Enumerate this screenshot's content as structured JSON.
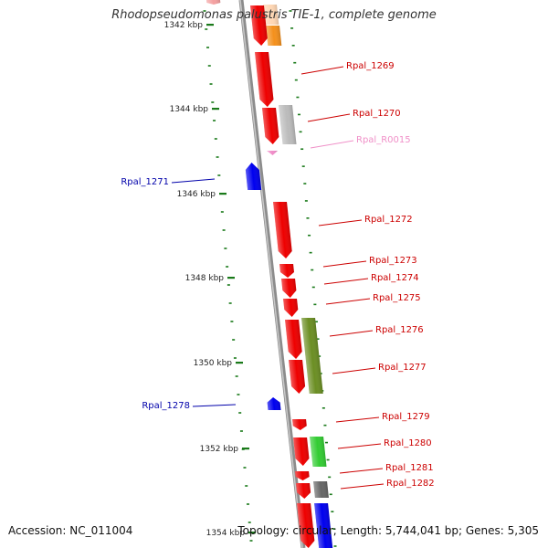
{
  "title": "Rhodopseudomonas palustris TIE-1, complete genome",
  "footer": {
    "accession": "Accession: NC_011004",
    "summary": "Topology: circular; Length: 5,744,041 bp; Genes: 5,305"
  },
  "scale_ticks": [
    {
      "label": "1342 kbp",
      "kbp": 1342
    },
    {
      "label": "1344 kbp",
      "kbp": 1344
    },
    {
      "label": "1346 kbp",
      "kbp": 1346
    },
    {
      "label": "1348 kbp",
      "kbp": 1348
    },
    {
      "label": "1350 kbp",
      "kbp": 1350
    },
    {
      "label": "1352 kbp",
      "kbp": 1352
    },
    {
      "label": "1354 kbp",
      "kbp": 1354
    }
  ],
  "colors": {
    "backbone": "#8c8c8c",
    "tick": "#1a7a1a",
    "forward_gene": "#ee0000",
    "reverse_gene": "#0000ee",
    "rna": "#f08cc8"
  },
  "gene_labels": [
    {
      "name": "Rpal_1269",
      "side": "right",
      "color": "#cc0000"
    },
    {
      "name": "Rpal_1270",
      "side": "right",
      "color": "#cc0000"
    },
    {
      "name": "Rpal_R0015",
      "side": "right",
      "color": "#f090c8"
    },
    {
      "name": "Rpal_1271",
      "side": "left",
      "color": "#0000aa"
    },
    {
      "name": "Rpal_1272",
      "side": "right",
      "color": "#cc0000"
    },
    {
      "name": "Rpal_1273",
      "side": "right",
      "color": "#cc0000"
    },
    {
      "name": "Rpal_1274",
      "side": "right",
      "color": "#cc0000"
    },
    {
      "name": "Rpal_1275",
      "side": "right",
      "color": "#cc0000"
    },
    {
      "name": "Rpal_1276",
      "side": "right",
      "color": "#cc0000"
    },
    {
      "name": "Rpal_1277",
      "side": "right",
      "color": "#cc0000"
    },
    {
      "name": "Rpal_1278",
      "side": "left",
      "color": "#0000aa"
    },
    {
      "name": "Rpal_1279",
      "side": "right",
      "color": "#cc0000"
    },
    {
      "name": "Rpal_1280",
      "side": "right",
      "color": "#cc0000"
    },
    {
      "name": "Rpal_1281",
      "side": "right",
      "color": "#cc0000"
    },
    {
      "name": "Rpal_1282",
      "side": "right",
      "color": "#cc0000"
    }
  ],
  "gene_blocks": [
    {
      "kind": "forward",
      "color": "#ee0000"
    },
    {
      "kind": "forward",
      "color": "#ee0000"
    },
    {
      "kind": "rna",
      "color": "#f08cc8"
    },
    {
      "kind": "reverse",
      "color": "#0000ee"
    },
    {
      "kind": "forward",
      "color": "#ee0000"
    },
    {
      "kind": "forward",
      "color": "#ee0000"
    },
    {
      "kind": "forward",
      "color": "#ee0000"
    },
    {
      "kind": "forward",
      "color": "#ee0000"
    },
    {
      "kind": "forward",
      "color": "#ee0000"
    },
    {
      "kind": "forward",
      "color": "#ee0000"
    },
    {
      "kind": "reverse",
      "color": "#0000ee"
    },
    {
      "kind": "forward",
      "color": "#ee0000"
    },
    {
      "kind": "forward",
      "color": "#ee0000"
    },
    {
      "kind": "forward",
      "color": "#ee0000"
    },
    {
      "kind": "forward",
      "color": "#ee0000"
    },
    {
      "kind": "cog",
      "color": "#f4901c"
    },
    {
      "kind": "cog",
      "color": "#bbbbbb"
    },
    {
      "kind": "cog",
      "color": "#6b8e23"
    },
    {
      "kind": "cog",
      "color": "#33cc33"
    },
    {
      "kind": "cog",
      "color": "#666666"
    },
    {
      "kind": "cog",
      "color": "#0000ee"
    },
    {
      "kind": "forward",
      "color": "#ee0000"
    },
    {
      "kind": "cog",
      "color": "#ffd7b4"
    },
    {
      "kind": "forward",
      "color": "#f4a0a0"
    },
    {
      "kind": "forward",
      "color": "#ee0000"
    }
  ]
}
